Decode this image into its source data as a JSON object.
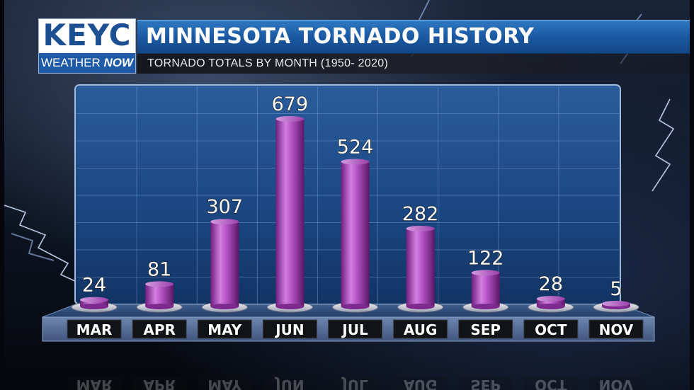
{
  "brand": {
    "logo_text": "KEYC",
    "logo_sub_weather": "WEATHER",
    "logo_sub_now": "NOW"
  },
  "header": {
    "title": "MINNESOTA TORNADO HISTORY",
    "subtitle": "TORNADO TOTALS BY MONTH (1950- 2020)"
  },
  "colors": {
    "bar": "#b04fc0",
    "panel": "#1b4a86",
    "title_bar": "#1f5aa6"
  },
  "chart_data": {
    "type": "bar",
    "title": "MINNESOTA TORNADO HISTORY",
    "subtitle": "TORNADO TOTALS BY MONTH (1950- 2020)",
    "categories": [
      "MAR",
      "APR",
      "MAY",
      "JUN",
      "JUL",
      "AUG",
      "SEP",
      "OCT",
      "NOV"
    ],
    "values": [
      24,
      81,
      307,
      679,
      524,
      282,
      122,
      28,
      5
    ],
    "data_labels": [
      "24",
      "81",
      "307",
      "679",
      "524",
      "282",
      "122",
      "28",
      "5"
    ],
    "ylim": [
      0,
      750
    ],
    "grid": true,
    "legend": "none"
  }
}
